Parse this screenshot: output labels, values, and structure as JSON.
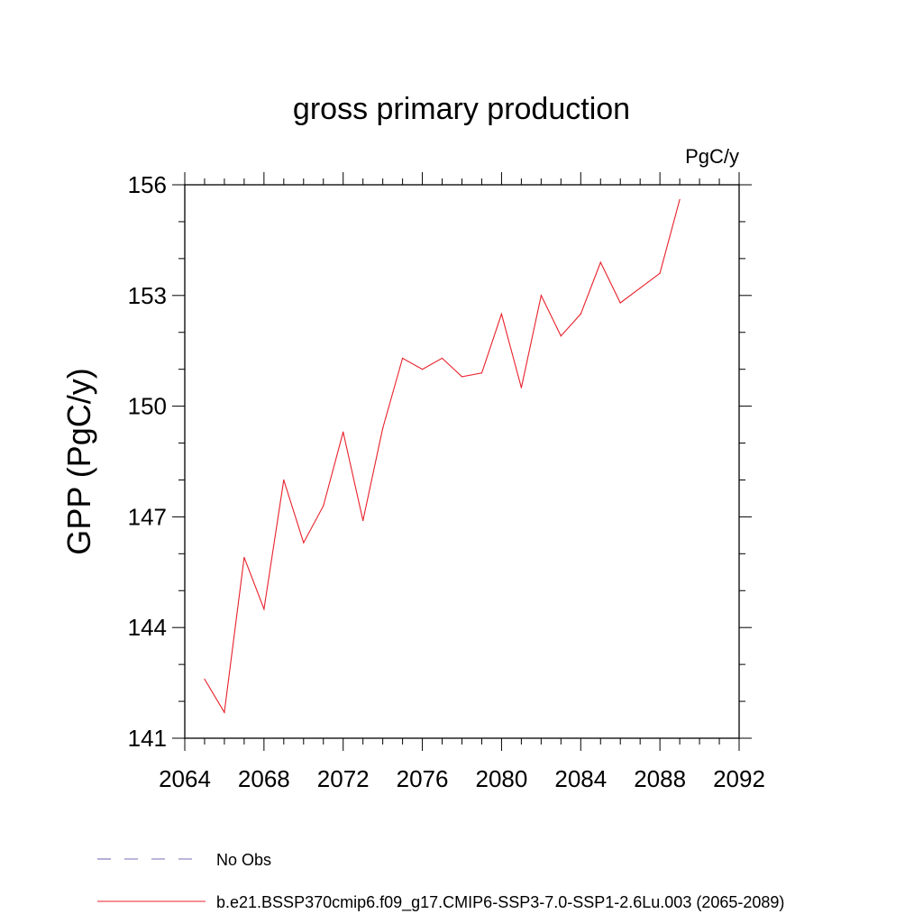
{
  "chart_data": {
    "type": "line",
    "title": "gross primary production",
    "units_label": "PgC/y",
    "ylabel": "GPP  (PgC/y)",
    "xlabel": "",
    "xlim": [
      2064,
      2092
    ],
    "ylim": [
      141,
      156
    ],
    "xticks": [
      2064,
      2068,
      2072,
      2076,
      2080,
      2084,
      2088,
      2092
    ],
    "yticks": [
      141,
      144,
      147,
      150,
      153,
      156
    ],
    "x_minor_step": 1,
    "y_minor_step": 1,
    "grid": false,
    "legend_position": "bottom",
    "series": [
      {
        "name": "No Obs",
        "color": "#7a6bb5",
        "dash": "dashed",
        "x": [],
        "y": []
      },
      {
        "name": "b.e21.BSSP370cmip6.f09_g17.CMIP6-SSP3-7.0-SSP1-2.6Lu.003 (2065-2089)",
        "color": "#e8202a",
        "dash": "solid",
        "x": [
          2065,
          2066,
          2067,
          2068,
          2069,
          2070,
          2071,
          2072,
          2073,
          2074,
          2075,
          2076,
          2077,
          2078,
          2079,
          2080,
          2081,
          2082,
          2083,
          2084,
          2085,
          2086,
          2087,
          2088,
          2089
        ],
        "y": [
          142.6,
          141.7,
          145.9,
          144.5,
          148.0,
          146.3,
          147.3,
          149.3,
          146.9,
          149.4,
          151.3,
          151.0,
          151.3,
          150.8,
          150.9,
          152.5,
          150.5,
          153.0,
          151.9,
          152.5,
          153.9,
          152.8,
          153.2,
          153.6,
          155.6
        ]
      }
    ]
  }
}
